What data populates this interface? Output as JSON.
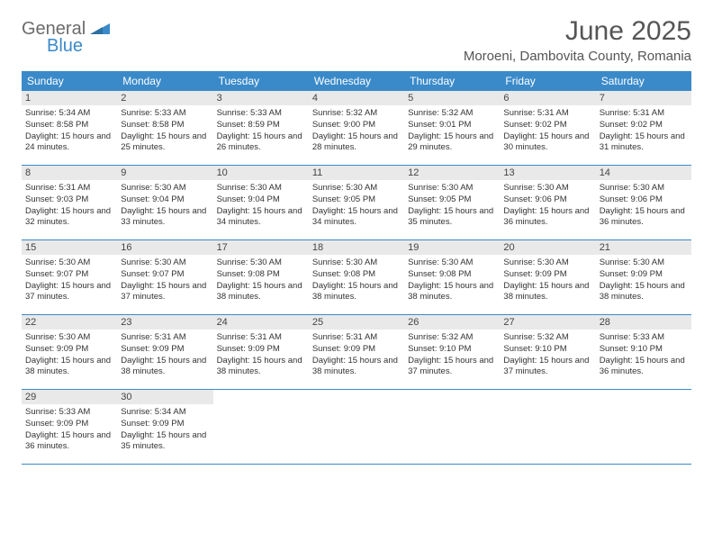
{
  "brand": {
    "word1": "General",
    "word2": "Blue"
  },
  "title": "June 2025",
  "location": "Moroeni, Dambovita County, Romania",
  "colors": {
    "accent": "#3a8ac9",
    "header_text": "#ffffff",
    "daynum_bg": "#e9e9e9",
    "body_text": "#333333",
    "title_text": "#555555",
    "divider": "#3a8ac9"
  },
  "typography": {
    "title_fontsize": 30,
    "location_fontsize": 15,
    "header_fontsize": 12,
    "daynum_fontsize": 11,
    "body_fontsize": 9.5
  },
  "dayHeaders": [
    "Sunday",
    "Monday",
    "Tuesday",
    "Wednesday",
    "Thursday",
    "Friday",
    "Saturday"
  ],
  "weeks": [
    [
      {
        "n": "1",
        "sr": "5:34 AM",
        "ss": "8:58 PM",
        "dl": "15 hours and 24 minutes."
      },
      {
        "n": "2",
        "sr": "5:33 AM",
        "ss": "8:58 PM",
        "dl": "15 hours and 25 minutes."
      },
      {
        "n": "3",
        "sr": "5:33 AM",
        "ss": "8:59 PM",
        "dl": "15 hours and 26 minutes."
      },
      {
        "n": "4",
        "sr": "5:32 AM",
        "ss": "9:00 PM",
        "dl": "15 hours and 28 minutes."
      },
      {
        "n": "5",
        "sr": "5:32 AM",
        "ss": "9:01 PM",
        "dl": "15 hours and 29 minutes."
      },
      {
        "n": "6",
        "sr": "5:31 AM",
        "ss": "9:02 PM",
        "dl": "15 hours and 30 minutes."
      },
      {
        "n": "7",
        "sr": "5:31 AM",
        "ss": "9:02 PM",
        "dl": "15 hours and 31 minutes."
      }
    ],
    [
      {
        "n": "8",
        "sr": "5:31 AM",
        "ss": "9:03 PM",
        "dl": "15 hours and 32 minutes."
      },
      {
        "n": "9",
        "sr": "5:30 AM",
        "ss": "9:04 PM",
        "dl": "15 hours and 33 minutes."
      },
      {
        "n": "10",
        "sr": "5:30 AM",
        "ss": "9:04 PM",
        "dl": "15 hours and 34 minutes."
      },
      {
        "n": "11",
        "sr": "5:30 AM",
        "ss": "9:05 PM",
        "dl": "15 hours and 34 minutes."
      },
      {
        "n": "12",
        "sr": "5:30 AM",
        "ss": "9:05 PM",
        "dl": "15 hours and 35 minutes."
      },
      {
        "n": "13",
        "sr": "5:30 AM",
        "ss": "9:06 PM",
        "dl": "15 hours and 36 minutes."
      },
      {
        "n": "14",
        "sr": "5:30 AM",
        "ss": "9:06 PM",
        "dl": "15 hours and 36 minutes."
      }
    ],
    [
      {
        "n": "15",
        "sr": "5:30 AM",
        "ss": "9:07 PM",
        "dl": "15 hours and 37 minutes."
      },
      {
        "n": "16",
        "sr": "5:30 AM",
        "ss": "9:07 PM",
        "dl": "15 hours and 37 minutes."
      },
      {
        "n": "17",
        "sr": "5:30 AM",
        "ss": "9:08 PM",
        "dl": "15 hours and 38 minutes."
      },
      {
        "n": "18",
        "sr": "5:30 AM",
        "ss": "9:08 PM",
        "dl": "15 hours and 38 minutes."
      },
      {
        "n": "19",
        "sr": "5:30 AM",
        "ss": "9:08 PM",
        "dl": "15 hours and 38 minutes."
      },
      {
        "n": "20",
        "sr": "5:30 AM",
        "ss": "9:09 PM",
        "dl": "15 hours and 38 minutes."
      },
      {
        "n": "21",
        "sr": "5:30 AM",
        "ss": "9:09 PM",
        "dl": "15 hours and 38 minutes."
      }
    ],
    [
      {
        "n": "22",
        "sr": "5:30 AM",
        "ss": "9:09 PM",
        "dl": "15 hours and 38 minutes."
      },
      {
        "n": "23",
        "sr": "5:31 AM",
        "ss": "9:09 PM",
        "dl": "15 hours and 38 minutes."
      },
      {
        "n": "24",
        "sr": "5:31 AM",
        "ss": "9:09 PM",
        "dl": "15 hours and 38 minutes."
      },
      {
        "n": "25",
        "sr": "5:31 AM",
        "ss": "9:09 PM",
        "dl": "15 hours and 38 minutes."
      },
      {
        "n": "26",
        "sr": "5:32 AM",
        "ss": "9:10 PM",
        "dl": "15 hours and 37 minutes."
      },
      {
        "n": "27",
        "sr": "5:32 AM",
        "ss": "9:10 PM",
        "dl": "15 hours and 37 minutes."
      },
      {
        "n": "28",
        "sr": "5:33 AM",
        "ss": "9:10 PM",
        "dl": "15 hours and 36 minutes."
      }
    ],
    [
      {
        "n": "29",
        "sr": "5:33 AM",
        "ss": "9:09 PM",
        "dl": "15 hours and 36 minutes."
      },
      {
        "n": "30",
        "sr": "5:34 AM",
        "ss": "9:09 PM",
        "dl": "15 hours and 35 minutes."
      },
      null,
      null,
      null,
      null,
      null
    ]
  ],
  "labels": {
    "sunrise": "Sunrise:",
    "sunset": "Sunset:",
    "daylight": "Daylight:"
  }
}
